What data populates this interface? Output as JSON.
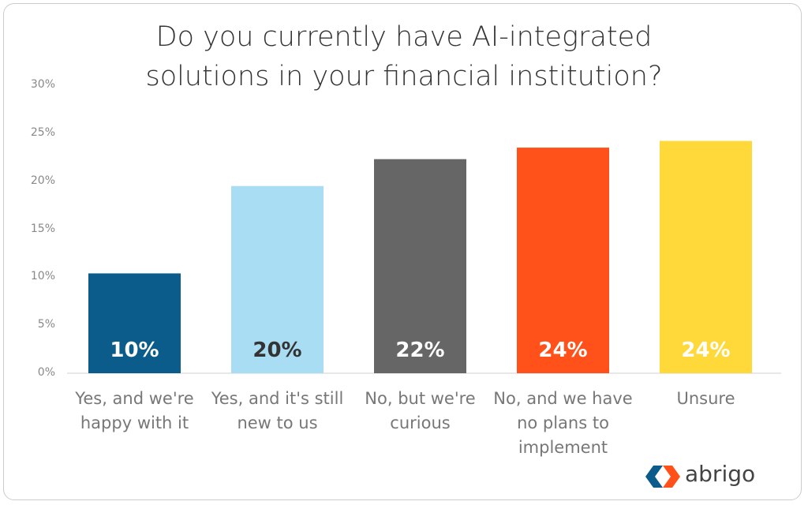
{
  "chart_data": {
    "type": "bar",
    "title": "Do you currently have AI-integrated solutions in your financial institution?",
    "categories": [
      "Yes, and we're happy with it",
      "Yes, and it's still new to us",
      "No, but we're curious",
      "No, and we have no plans to implement",
      "Unsure"
    ],
    "values": [
      10.4,
      19.5,
      22.3,
      23.5,
      24.2
    ],
    "value_labels": [
      "10%",
      "20%",
      "22%",
      "24%",
      "24%"
    ],
    "colors": [
      "#0b5c8a",
      "#a9ddf3",
      "#666666",
      "#ff5119",
      "#ffd83a"
    ],
    "value_label_colors": [
      "#ffffff",
      "#333333",
      "#ffffff",
      "#ffffff",
      "#ffffff"
    ],
    "ylim": [
      0,
      30
    ],
    "yticks": [
      {
        "value": 0,
        "label": "0%"
      },
      {
        "value": 5,
        "label": "5%"
      },
      {
        "value": 10,
        "label": "10%"
      },
      {
        "value": 15,
        "label": "15%"
      },
      {
        "value": 20,
        "label": "20%"
      },
      {
        "value": 25,
        "label": "25%"
      },
      {
        "value": 30,
        "label": "30%"
      }
    ],
    "grid": false,
    "brand": "abrigo"
  }
}
